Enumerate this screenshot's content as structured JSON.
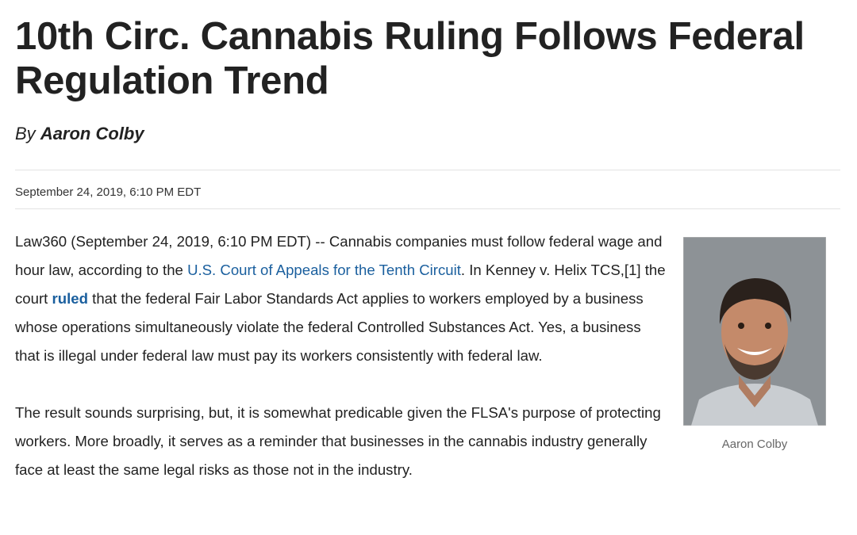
{
  "article": {
    "title": "10th Circ. Cannabis Ruling Follows Federal Regulation Trend",
    "byline": {
      "prefix": "By",
      "author": "Aaron Colby"
    },
    "date": "September 24, 2019, 6:10 PM EDT",
    "image": {
      "caption": "Aaron Colby"
    },
    "paragraphs": [
      [
        "Law360 (September 24, 2019, 6:10 PM EDT) -- Cannabis companies must follow federal wage and hour law, according to the ",
        "U.S. Court of Appeals for the Tenth Circuit",
        ". In Kenney v. Helix TCS,[1] the court ",
        "ruled",
        " that the federal Fair Labor Standards Act applies to workers employed by a business whose operations simultaneously violate the federal Controlled Substances Act. Yes, a business that is illegal under federal law must pay its workers consistently with federal law."
      ],
      [
        "The result sounds surprising, but, it is somewhat predicable given the FLSA's purpose of protecting workers. More broadly, it serves as a reminder that businesses in the cannabis industry generally face at least the same legal risks as those not in the industry."
      ]
    ]
  }
}
